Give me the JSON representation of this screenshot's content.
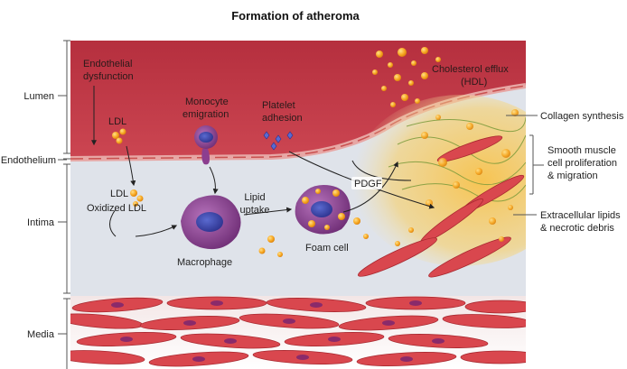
{
  "title": "Formation of atheroma",
  "layers": {
    "lumen": "Lumen",
    "endothelium": "Endothelium",
    "intima": "Intima",
    "media": "Media"
  },
  "labels": {
    "endothelial_dysfunction_1": "Endothelial",
    "endothelial_dysfunction_2": "dysfunction",
    "ldl_lumen": "LDL",
    "monocyte_1": "Monocyte",
    "monocyte_2": "emigration",
    "platelet_1": "Platelet",
    "platelet_2": "adhesion",
    "ldl_intima": "LDL",
    "oxidized_ldl": "Oxidized LDL",
    "macrophage": "Macrophage",
    "lipid_uptake_1": "Lipid",
    "lipid_uptake_2": "uptake",
    "foam_cell": "Foam cell",
    "pdgf": "PDGF",
    "cholesterol_efflux_1": "Cholesterol efflux",
    "cholesterol_efflux_2": "(HDL)",
    "collagen_synthesis": "Collagen synthesis",
    "smc_1": "Smooth muscle",
    "smc_2": "cell proliferation",
    "smc_3": "& migration",
    "lipids_1": "Extracellular lipids",
    "lipids_2": "& necrotic debris"
  },
  "colors": {
    "lumen": "#c23a48",
    "intima": "#dfe3ea",
    "smooth_muscle": "#d9474e",
    "lipid": "#f7a823",
    "macrophage": "#8c3e8f"
  }
}
